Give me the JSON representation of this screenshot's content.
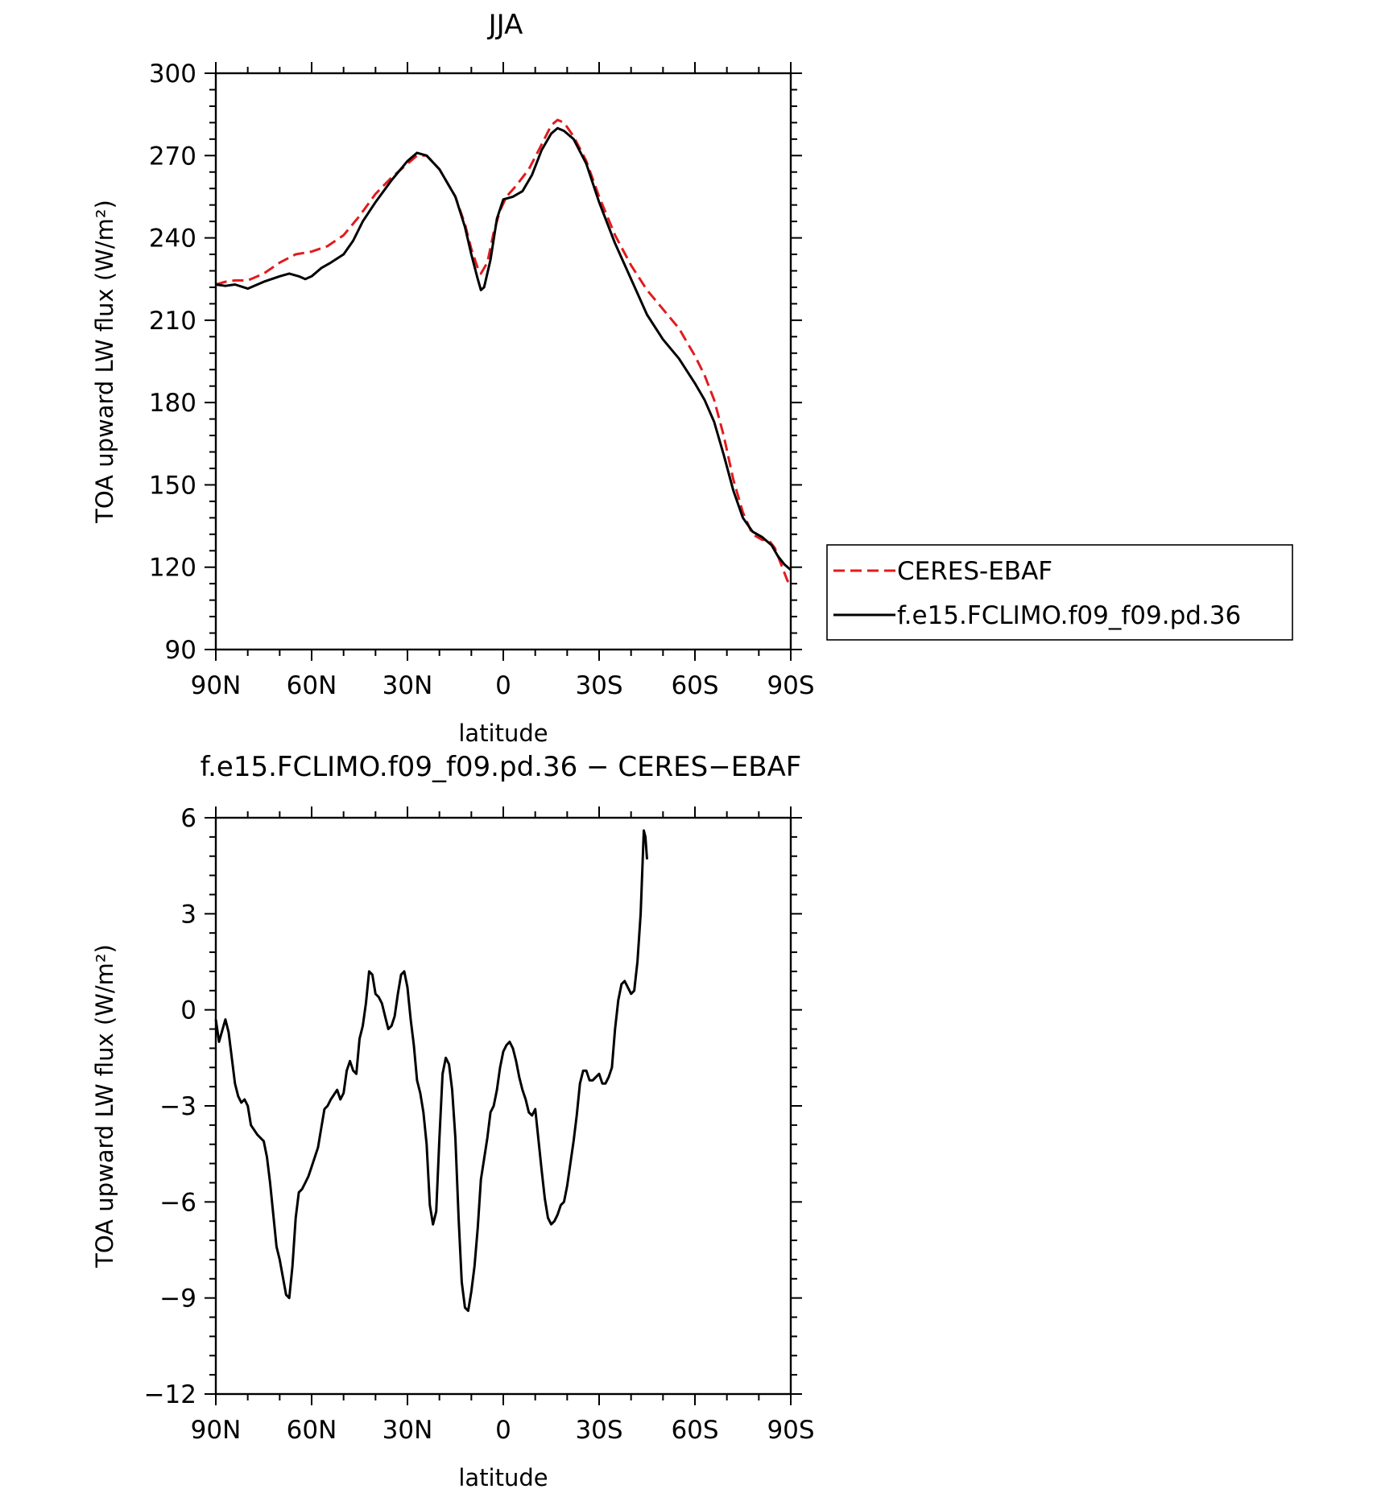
{
  "colors": {
    "obs": "#e31a1c",
    "model": "#000000",
    "axes": "#000000",
    "background": "#ffffff"
  },
  "chart_data": [
    {
      "type": "line",
      "title": "JJA",
      "xlabel": "latitude",
      "ylabel": "TOA upward LW flux (W/m²)",
      "xlim": [
        90,
        -90
      ],
      "ylim": [
        90,
        300
      ],
      "x_ticks": [
        {
          "value": 90,
          "label": "90N"
        },
        {
          "value": 60,
          "label": "60N"
        },
        {
          "value": 30,
          "label": "30N"
        },
        {
          "value": 0,
          "label": "0"
        },
        {
          "value": -30,
          "label": "30S"
        },
        {
          "value": -60,
          "label": "60S"
        },
        {
          "value": -90,
          "label": "90S"
        }
      ],
      "y_ticks": [
        {
          "value": 90,
          "label": "90"
        },
        {
          "value": 120,
          "label": "120"
        },
        {
          "value": 150,
          "label": "150"
        },
        {
          "value": 180,
          "label": "180"
        },
        {
          "value": 210,
          "label": "210"
        },
        {
          "value": 240,
          "label": "240"
        },
        {
          "value": 270,
          "label": "270"
        },
        {
          "value": 300,
          "label": "300"
        }
      ],
      "legend": {
        "position": "right"
      },
      "series": [
        {
          "name": "CERES-EBAF",
          "style": "dashed",
          "color": "#e31a1c",
          "points": [
            [
              90,
              223
            ],
            [
              87,
              224
            ],
            [
              84,
              224.5
            ],
            [
              80,
              224.5
            ],
            [
              75,
              227
            ],
            [
              70,
              231
            ],
            [
              65,
              234
            ],
            [
              60,
              235
            ],
            [
              55,
              237
            ],
            [
              50,
              241
            ],
            [
              45,
              248
            ],
            [
              40,
              256
            ],
            [
              35,
              262
            ],
            [
              30,
              267
            ],
            [
              27,
              270
            ],
            [
              24,
              270
            ],
            [
              20,
              265
            ],
            [
              15,
              255
            ],
            [
              12,
              245
            ],
            [
              10,
              236
            ],
            [
              8,
              229
            ],
            [
              7,
              227
            ],
            [
              5,
              231
            ],
            [
              3,
              242
            ],
            [
              1,
              250
            ],
            [
              -1,
              255
            ],
            [
              -4,
              259
            ],
            [
              -8,
              265
            ],
            [
              -12,
              274
            ],
            [
              -15,
              281
            ],
            [
              -17,
              283
            ],
            [
              -19,
              282
            ],
            [
              -22,
              277
            ],
            [
              -26,
              268
            ],
            [
              -30,
              255
            ],
            [
              -35,
              241
            ],
            [
              -40,
              230
            ],
            [
              -45,
              221
            ],
            [
              -50,
              214
            ],
            [
              -55,
              207
            ],
            [
              -60,
              197
            ],
            [
              -63,
              190
            ],
            [
              -66,
              181
            ],
            [
              -69,
              168
            ],
            [
              -72,
              152
            ],
            [
              -75,
              140
            ],
            [
              -78,
              132
            ],
            [
              -81,
              130
            ],
            [
              -83,
              130
            ],
            [
              -85,
              127
            ],
            [
              -87,
              121
            ],
            [
              -89,
              115
            ],
            [
              -90,
              114
            ]
          ]
        },
        {
          "name": "f.e15.FCLIMO.f09_f09.pd.36",
          "style": "solid",
          "color": "#000000",
          "points": [
            [
              90,
              223
            ],
            [
              87,
              222.5
            ],
            [
              84,
              223
            ],
            [
              80,
              221.5
            ],
            [
              75,
              224
            ],
            [
              70,
              226
            ],
            [
              67,
              227
            ],
            [
              64,
              226
            ],
            [
              62,
              225
            ],
            [
              60,
              226
            ],
            [
              57,
              229
            ],
            [
              54,
              231
            ],
            [
              50,
              234
            ],
            [
              47,
              239
            ],
            [
              44,
              246
            ],
            [
              40,
              253
            ],
            [
              35,
              261
            ],
            [
              30,
              268
            ],
            [
              27,
              271
            ],
            [
              24,
              270
            ],
            [
              20,
              265
            ],
            [
              15,
              255
            ],
            [
              12,
              244
            ],
            [
              10,
              234
            ],
            [
              8,
              225
            ],
            [
              7,
              221
            ],
            [
              6,
              222
            ],
            [
              4,
              232
            ],
            [
              2,
              247
            ],
            [
              0,
              254
            ],
            [
              -3,
              255
            ],
            [
              -6,
              257
            ],
            [
              -9,
              263
            ],
            [
              -12,
              272
            ],
            [
              -15,
              278
            ],
            [
              -17,
              280
            ],
            [
              -19,
              279
            ],
            [
              -22,
              276
            ],
            [
              -26,
              267
            ],
            [
              -30,
              253
            ],
            [
              -35,
              238
            ],
            [
              -40,
              225
            ],
            [
              -45,
              212
            ],
            [
              -50,
              203
            ],
            [
              -55,
              196
            ],
            [
              -60,
              187
            ],
            [
              -63,
              181
            ],
            [
              -66,
              173
            ],
            [
              -69,
              161
            ],
            [
              -72,
              148
            ],
            [
              -75,
              138
            ],
            [
              -78,
              133
            ],
            [
              -81,
              131
            ],
            [
              -84,
              128
            ],
            [
              -86,
              124
            ],
            [
              -88,
              121
            ],
            [
              -90,
              119
            ]
          ]
        }
      ]
    },
    {
      "type": "line",
      "title": "f.e15.FCLIMO.f09_f09.pd.36 − CERES−EBAF",
      "xlabel": "latitude",
      "ylabel": "TOA upward LW flux (W/m²)",
      "xlim": [
        90,
        -90
      ],
      "ylim": [
        -12,
        6
      ],
      "x_ticks": [
        {
          "value": 90,
          "label": "90N"
        },
        {
          "value": 60,
          "label": "60N"
        },
        {
          "value": 30,
          "label": "30N"
        },
        {
          "value": 0,
          "label": "0"
        },
        {
          "value": -30,
          "label": "30S"
        },
        {
          "value": -60,
          "label": "60S"
        },
        {
          "value": -90,
          "label": "90S"
        }
      ],
      "y_ticks": [
        {
          "value": -12,
          "label": "−12"
        },
        {
          "value": -9,
          "label": "−9"
        },
        {
          "value": -6,
          "label": "−6"
        },
        {
          "value": -3,
          "label": "−3"
        },
        {
          "value": 0,
          "label": "0"
        },
        {
          "value": 3,
          "label": "3"
        },
        {
          "value": 6,
          "label": "6"
        }
      ],
      "series": [
        {
          "name": "",
          "style": "solid",
          "color": "#000000",
          "points": [
            [
              90,
              -0.3
            ],
            [
              89,
              -1.0
            ],
            [
              87,
              -0.3
            ],
            [
              86,
              -0.7
            ],
            [
              84,
              -2.3
            ],
            [
              83,
              -2.7
            ],
            [
              82,
              -2.9
            ],
            [
              81,
              -2.8
            ],
            [
              80,
              -3.0
            ],
            [
              79,
              -3.6
            ],
            [
              77,
              -3.9
            ],
            [
              75,
              -4.1
            ],
            [
              74,
              -4.6
            ],
            [
              73,
              -5.4
            ],
            [
              72,
              -6.4
            ],
            [
              71,
              -7.4
            ],
            [
              70,
              -7.8
            ],
            [
              68,
              -8.9
            ],
            [
              67,
              -9.0
            ],
            [
              66,
              -8.0
            ],
            [
              65,
              -6.5
            ],
            [
              64,
              -5.7
            ],
            [
              63,
              -5.6
            ],
            [
              62,
              -5.4
            ],
            [
              61,
              -5.2
            ],
            [
              60,
              -4.9
            ],
            [
              58,
              -4.3
            ],
            [
              57,
              -3.7
            ],
            [
              56,
              -3.1
            ],
            [
              55,
              -3.0
            ],
            [
              54,
              -2.8
            ],
            [
              52,
              -2.5
            ],
            [
              51,
              -2.8
            ],
            [
              50,
              -2.6
            ],
            [
              49,
              -1.9
            ],
            [
              48,
              -1.6
            ],
            [
              47,
              -1.9
            ],
            [
              46,
              -2.0
            ],
            [
              45,
              -0.9
            ],
            [
              44,
              -0.5
            ],
            [
              43,
              0.2
            ],
            [
              42,
              1.2
            ],
            [
              41,
              1.1
            ],
            [
              40,
              0.5
            ],
            [
              39,
              0.4
            ],
            [
              38,
              0.2
            ],
            [
              37,
              -0.2
            ],
            [
              36,
              -0.6
            ],
            [
              35,
              -0.5
            ],
            [
              34,
              -0.2
            ],
            [
              33,
              0.5
            ],
            [
              32,
              1.1
            ],
            [
              31,
              1.2
            ],
            [
              30,
              0.7
            ],
            [
              29,
              -0.3
            ],
            [
              28,
              -1.1
            ],
            [
              27,
              -2.2
            ],
            [
              26,
              -2.6
            ],
            [
              25,
              -3.2
            ],
            [
              24,
              -4.2
            ],
            [
              23,
              -6.1
            ],
            [
              22,
              -6.7
            ],
            [
              21,
              -6.3
            ],
            [
              20,
              -4.0
            ],
            [
              19,
              -2.0
            ],
            [
              18,
              -1.5
            ],
            [
              17,
              -1.7
            ],
            [
              16,
              -2.5
            ],
            [
              15,
              -4.0
            ],
            [
              14,
              -6.5
            ],
            [
              13,
              -8.5
            ],
            [
              12,
              -9.3
            ],
            [
              11,
              -9.4
            ],
            [
              10,
              -8.8
            ],
            [
              9,
              -8.0
            ],
            [
              8,
              -6.8
            ],
            [
              7,
              -5.3
            ],
            [
              5,
              -4.0
            ],
            [
              4,
              -3.2
            ],
            [
              3,
              -3.0
            ],
            [
              2,
              -2.5
            ],
            [
              1,
              -1.8
            ],
            [
              0,
              -1.3
            ],
            [
              -1,
              -1.1
            ],
            [
              -2,
              -1.0
            ],
            [
              -3,
              -1.2
            ],
            [
              -4,
              -1.6
            ],
            [
              -5,
              -2.1
            ],
            [
              -6,
              -2.5
            ],
            [
              -7,
              -2.8
            ],
            [
              -8,
              -3.2
            ],
            [
              -9,
              -3.3
            ],
            [
              -10,
              -3.1
            ],
            [
              -12,
              -5.0
            ],
            [
              -13,
              -5.9
            ],
            [
              -14,
              -6.5
            ],
            [
              -15,
              -6.7
            ],
            [
              -16,
              -6.6
            ],
            [
              -17,
              -6.4
            ],
            [
              -18,
              -6.1
            ],
            [
              -19,
              -6.0
            ],
            [
              -20,
              -5.5
            ],
            [
              -21,
              -4.8
            ],
            [
              -22,
              -4.1
            ],
            [
              -23,
              -3.3
            ],
            [
              -24,
              -2.3
            ],
            [
              -25,
              -1.9
            ],
            [
              -26,
              -1.9
            ],
            [
              -27,
              -2.2
            ],
            [
              -28,
              -2.2
            ],
            [
              -29,
              -2.1
            ],
            [
              -30,
              -2.0
            ],
            [
              -31,
              -2.3
            ],
            [
              -32,
              -2.3
            ],
            [
              -33,
              -2.1
            ],
            [
              -34,
              -1.8
            ],
            [
              -35,
              -0.6
            ],
            [
              -36,
              0.3
            ],
            [
              -37,
              0.8
            ],
            [
              -38,
              0.9
            ],
            [
              -39,
              0.7
            ],
            [
              -40,
              0.5
            ],
            [
              -41,
              0.6
            ],
            [
              -42,
              1.5
            ],
            [
              -43,
              3.0
            ],
            [
              -44,
              5.6
            ],
            [
              -44.5,
              5.4
            ],
            [
              -45,
              4.7
            ]
          ]
        }
      ]
    }
  ]
}
